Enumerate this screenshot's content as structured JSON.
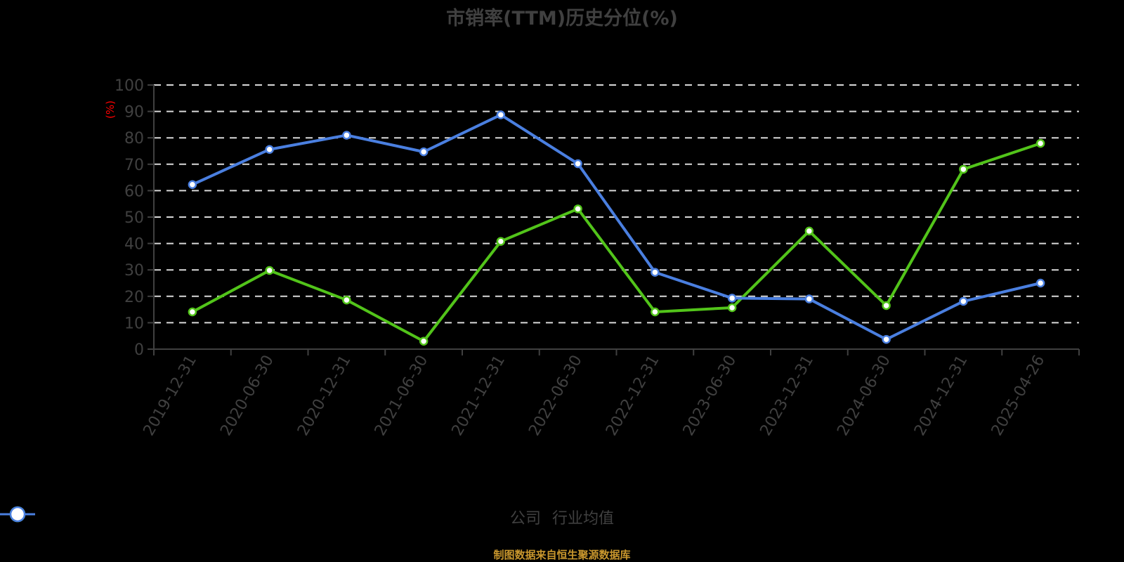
{
  "title": "市销率(TTM)历史分位(%)",
  "footer": "制图数据来自恒生聚源数据库",
  "colors": {
    "company": "#52c41a",
    "industry": "#4a7fe0",
    "axis": "#404040",
    "grid": "#d9d9d9",
    "unit": "#ff0000",
    "footer": "#c8962d"
  },
  "legend": [
    {
      "label": "公司",
      "color": "#52c41a"
    },
    {
      "label": "行业均值",
      "color": "#4a7fe0"
    }
  ],
  "chart_data": {
    "type": "line",
    "title": "市销率(TTM)历史分位(%)",
    "xlabel": "",
    "ylabel": "(%)",
    "ylim": [
      0,
      100
    ],
    "yticks": [
      0,
      10,
      20,
      30,
      40,
      50,
      60,
      70,
      80,
      90,
      100
    ],
    "grid": true,
    "legend_position": "bottom",
    "categories": [
      "2019-12-31",
      "2020-06-30",
      "2020-12-31",
      "2021-06-30",
      "2021-12-31",
      "2022-06-30",
      "2022-12-31",
      "2023-06-30",
      "2023-12-31",
      "2024-06-30",
      "2024-12-31",
      "2025-04-26"
    ],
    "series": [
      {
        "name": "公司",
        "color": "#52c41a",
        "values": [
          14.1,
          29.8,
          18.6,
          3.0,
          40.8,
          53.1,
          14.1,
          15.7,
          44.7,
          16.5,
          68.1,
          77.9
        ]
      },
      {
        "name": "行业均值",
        "color": "#4a7fe0",
        "values": [
          62.3,
          75.6,
          81.0,
          74.7,
          88.7,
          70.2,
          29.1,
          19.3,
          19.0,
          3.7,
          18.1,
          25.0
        ]
      }
    ],
    "footer_source": "制图数据来自恒生聚源数据库"
  }
}
